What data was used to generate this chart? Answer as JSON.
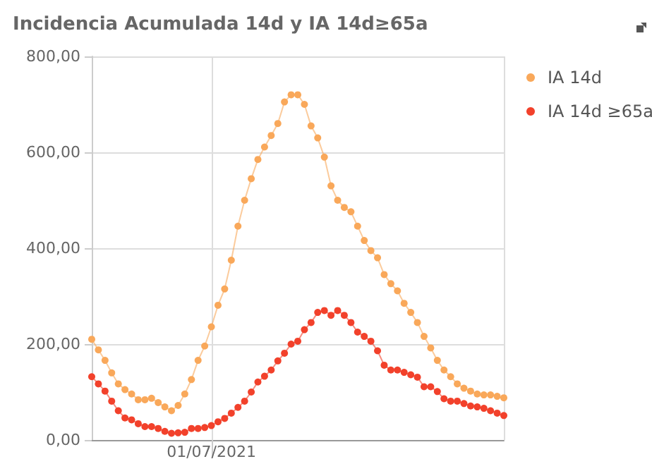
{
  "chart_data": {
    "type": "line",
    "title": "Incidencia Acumulada 14d y IA 14d≥65a",
    "categories": [
      null,
      null,
      null,
      null,
      null,
      null,
      null,
      null,
      null,
      null,
      null,
      null,
      null,
      null,
      null,
      null,
      null,
      null,
      "01/07/2021",
      null,
      null,
      null,
      null,
      null,
      null,
      null,
      null,
      null,
      null,
      null,
      null,
      null,
      null,
      null,
      null,
      null,
      null,
      null,
      null,
      null,
      null,
      null,
      null,
      null,
      null,
      null,
      null,
      null,
      null,
      null,
      null,
      null,
      null,
      null,
      null,
      null,
      null,
      null,
      null,
      null,
      null,
      null,
      null
    ],
    "ylim": [
      0,
      800
    ],
    "yticks": [
      {
        "value": 0,
        "label": "0,00"
      },
      {
        "value": 200,
        "label": "200,00"
      },
      {
        "value": 400,
        "label": "400,00"
      },
      {
        "value": 600,
        "label": "600,00"
      },
      {
        "value": 800,
        "label": "800,00"
      }
    ],
    "grid": true,
    "legend": "top right",
    "marker": "circle",
    "line_style": "solid",
    "series": [
      {
        "name": "IA 14d",
        "color": "#f9a85a",
        "values": [
          210,
          188,
          166,
          140,
          117,
          105,
          96,
          84,
          84,
          87,
          78,
          69,
          61,
          72,
          96,
          126,
          166,
          196,
          236,
          281,
          315,
          375,
          446,
          500,
          545,
          585,
          611,
          635,
          660,
          705,
          720,
          720,
          700,
          655,
          630,
          590,
          530,
          500,
          485,
          476,
          446,
          416,
          395,
          380,
          345,
          326,
          311,
          285,
          266,
          245,
          216,
          192,
          166,
          146,
          132,
          117,
          108,
          102,
          96,
          94,
          94,
          91,
          88
        ]
      },
      {
        "name": "IA 14d ≥65a",
        "color": "#f2412b",
        "values": [
          132,
          117,
          102,
          81,
          61,
          46,
          42,
          34,
          28,
          28,
          24,
          18,
          14,
          15,
          16,
          24,
          24,
          26,
          30,
          38,
          45,
          56,
          68,
          81,
          100,
          121,
          133,
          146,
          165,
          181,
          200,
          206,
          230,
          245,
          266,
          270,
          260,
          270,
          260,
          245,
          225,
          216,
          206,
          186,
          156,
          146,
          146,
          141,
          136,
          131,
          111,
          111,
          101,
          86,
          81,
          81,
          76,
          71,
          69,
          66,
          61,
          56,
          51
        ]
      }
    ]
  }
}
